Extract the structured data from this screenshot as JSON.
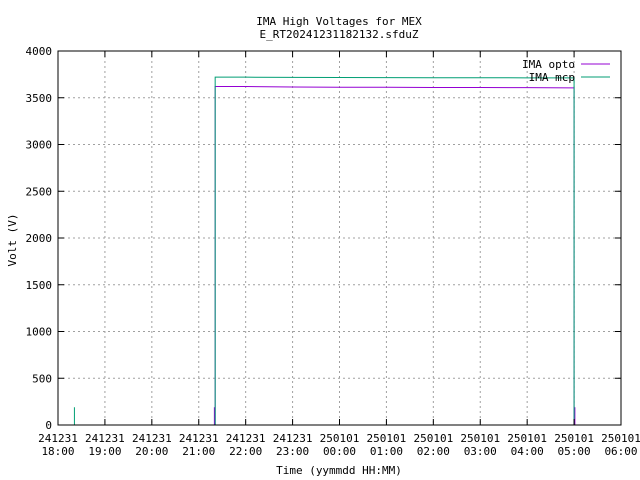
{
  "chart_data": {
    "type": "line",
    "title": "IMA High Voltages for MEX",
    "subtitle": "E_RT20241231182132.sfduZ",
    "xlabel": "Time (yymmdd HH:MM)",
    "ylabel": "Volt (V)",
    "xlim": [
      "2024-12-31 18:00",
      "2025-01-01 06:00"
    ],
    "ylim": [
      0,
      4000
    ],
    "yticks": [
      0,
      500,
      1000,
      1500,
      2000,
      2500,
      3000,
      3500,
      4000
    ],
    "xticks": [
      {
        "date": "241231",
        "time": "18:00"
      },
      {
        "date": "241231",
        "time": "19:00"
      },
      {
        "date": "241231",
        "time": "20:00"
      },
      {
        "date": "241231",
        "time": "21:00"
      },
      {
        "date": "241231",
        "time": "22:00"
      },
      {
        "date": "241231",
        "time": "23:00"
      },
      {
        "date": "250101",
        "time": "00:00"
      },
      {
        "date": "250101",
        "time": "01:00"
      },
      {
        "date": "250101",
        "time": "02:00"
      },
      {
        "date": "250101",
        "time": "03:00"
      },
      {
        "date": "250101",
        "time": "04:00"
      },
      {
        "date": "250101",
        "time": "05:00"
      },
      {
        "date": "250101",
        "time": "06:00"
      }
    ],
    "grid": true,
    "legend_position": "top-right",
    "series": [
      {
        "name": "IMA opto",
        "color": "#9400d3",
        "points": [
          [
            "2024-12-31 21:20",
            0
          ],
          [
            "2024-12-31 21:20",
            190
          ],
          [
            "2024-12-31 21:20",
            0
          ],
          [
            "2024-12-31 21:21",
            0
          ],
          [
            "2024-12-31 21:21",
            3620
          ],
          [
            "2024-12-31 22:00",
            3620
          ],
          [
            "2024-12-31 23:00",
            3615
          ],
          [
            "2025-01-01 00:00",
            3612
          ],
          [
            "2025-01-01 01:00",
            3612
          ],
          [
            "2025-01-01 02:00",
            3610
          ],
          [
            "2025-01-01 03:00",
            3610
          ],
          [
            "2025-01-01 04:00",
            3608
          ],
          [
            "2025-01-01 04:55",
            3605
          ],
          [
            "2025-01-01 05:00",
            3605
          ],
          [
            "2025-01-01 05:00",
            0
          ],
          [
            "2025-01-01 05:01",
            0
          ],
          [
            "2025-01-01 05:01",
            190
          ],
          [
            "2025-01-01 05:01",
            0
          ]
        ]
      },
      {
        "name": "IMA mcp",
        "color": "#009e73",
        "points": [
          [
            "2024-12-31 18:21",
            0
          ],
          [
            "2024-12-31 18:21",
            190
          ],
          [
            "2024-12-31 18:21",
            0
          ],
          [
            "2024-12-31 21:21",
            0
          ],
          [
            "2024-12-31 21:21",
            3720
          ],
          [
            "2024-12-31 22:00",
            3720
          ],
          [
            "2024-12-31 23:00",
            3718
          ],
          [
            "2025-01-01 00:00",
            3716
          ],
          [
            "2025-01-01 01:00",
            3715
          ],
          [
            "2025-01-01 02:00",
            3714
          ],
          [
            "2025-01-01 03:00",
            3714
          ],
          [
            "2025-01-01 04:00",
            3713
          ],
          [
            "2025-01-01 05:00",
            3712
          ],
          [
            "2025-01-01 05:00",
            0
          ]
        ]
      }
    ]
  }
}
